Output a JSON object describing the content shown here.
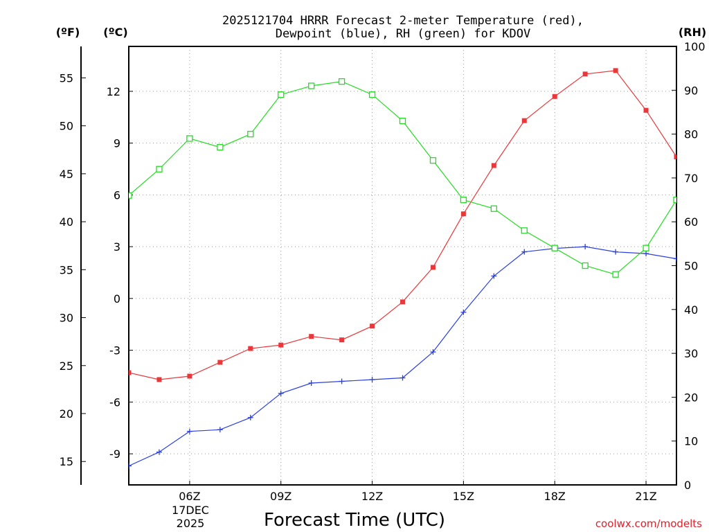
{
  "chart_data": {
    "type": "line",
    "title_line1": "2025121704 HRRR Forecast 2-meter Temperature (red),",
    "title_line2": "Dewpoint (blue), RH (green) for KDOV",
    "xlabel": "Forecast Time (UTC)",
    "date_label_line1": "17DEC",
    "date_label_line2": "2025",
    "credit": "coolwx.com/modelts",
    "unit_f": "(ºF)",
    "unit_c": "(ºC)",
    "unit_rh": "(RH)",
    "x": [
      4,
      5,
      6,
      7,
      8,
      9,
      10,
      11,
      12,
      13,
      14,
      15,
      16,
      17,
      18,
      19,
      20,
      21,
      22
    ],
    "xlim": [
      4,
      22
    ],
    "x_ticks": [
      {
        "x": 6,
        "label": "06Z"
      },
      {
        "x": 9,
        "label": "09Z"
      },
      {
        "x": 12,
        "label": "12Z"
      },
      {
        "x": 15,
        "label": "15Z"
      },
      {
        "x": 18,
        "label": "18Z"
      },
      {
        "x": 21,
        "label": "21Z"
      }
    ],
    "c_ylim": [
      -10.8,
      14.6
    ],
    "c_ticks": [
      "12",
      "9",
      "6",
      "3",
      "0",
      "-3",
      "-6",
      "-9"
    ],
    "f_ticks": [
      "55",
      "50",
      "45",
      "40",
      "35",
      "30",
      "25",
      "20",
      "15"
    ],
    "rh_ylim": [
      0,
      100
    ],
    "rh_ticks": [
      "100",
      "90",
      "80",
      "70",
      "60",
      "50",
      "40",
      "30",
      "20",
      "10",
      "0"
    ],
    "series": [
      {
        "name": "2-meter Temperature",
        "axis": "C",
        "color": "#e8383b",
        "marker": "filled-square",
        "values": [
          -4.3,
          -4.7,
          -4.5,
          -3.7,
          -2.9,
          -2.7,
          -2.2,
          -2.4,
          -1.6,
          -0.2,
          1.8,
          4.9,
          7.7,
          10.3,
          11.7,
          13.0,
          13.2,
          10.9,
          8.2
        ]
      },
      {
        "name": "Dewpoint",
        "axis": "C",
        "color": "#2a3fe0",
        "marker": "plus",
        "values": [
          -9.7,
          -8.9,
          -7.7,
          -7.6,
          -6.9,
          -5.5,
          -4.9,
          -4.8,
          -4.7,
          -4.6,
          -3.1,
          -0.8,
          1.3,
          2.7,
          2.9,
          3.0,
          2.7,
          2.6,
          2.3
        ]
      },
      {
        "name": "Relative Humidity",
        "axis": "RH",
        "color": "#22dd22",
        "marker": "open-square",
        "values": [
          66,
          72,
          79,
          77,
          80,
          89,
          91,
          92,
          89,
          83,
          74,
          65,
          63,
          58,
          54,
          50,
          48,
          54,
          65
        ]
      }
    ]
  }
}
